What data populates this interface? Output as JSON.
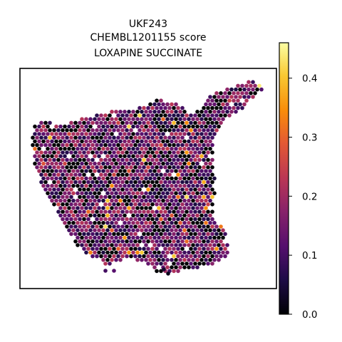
{
  "chart_data": {
    "type": "scatter",
    "subtype": "spatial-hex-spot-map",
    "title_lines": [
      "UKF243",
      "CHEMBL1201155 score",
      "LOXAPINE SUCCINATE"
    ],
    "xlabel": "",
    "ylabel": "",
    "axes_ticks": "none",
    "grid": false,
    "colormap": "inferno",
    "colorbar": {
      "range": [
        0.0,
        0.46
      ],
      "ticks": [
        0.0,
        0.1,
        0.2,
        0.3,
        0.4
      ],
      "tick_labels": [
        "0.0",
        "0.1",
        "0.2",
        "0.3",
        "0.4"
      ]
    },
    "value_distribution": {
      "min": 0.0,
      "max": 0.45,
      "typical_range": [
        0.05,
        0.2
      ],
      "fraction_zero": 0.25
    }
  }
}
